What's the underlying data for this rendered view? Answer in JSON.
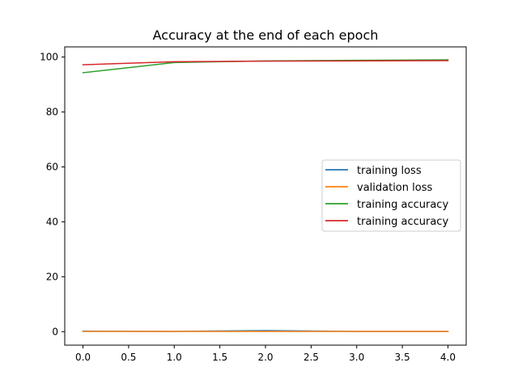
{
  "chart_data": {
    "type": "line",
    "title": "Accuracy at the end of each epoch",
    "xlabel": "",
    "ylabel": "",
    "x": [
      0,
      1,
      2,
      3,
      4
    ],
    "xlim": [
      -0.2,
      4.2
    ],
    "ylim": [
      -4.9,
      103.7
    ],
    "xticks": [
      0.0,
      0.5,
      1.0,
      1.5,
      2.0,
      2.5,
      3.0,
      3.5,
      4.0
    ],
    "xtick_labels": [
      "0.0",
      "0.5",
      "1.0",
      "1.5",
      "2.0",
      "2.5",
      "3.0",
      "3.5",
      "4.0"
    ],
    "yticks": [
      0,
      20,
      40,
      60,
      80,
      100
    ],
    "ytick_labels": [
      "0",
      "20",
      "40",
      "60",
      "80",
      "100"
    ],
    "grid": false,
    "legend_position": "center-right",
    "series": [
      {
        "name": "training loss",
        "color": "#1f77b4",
        "values": [
          0.2,
          0.1,
          0.4,
          0.1,
          0.1
        ]
      },
      {
        "name": "validation loss",
        "color": "#ff7f0e",
        "values": [
          0.1,
          0.1,
          0.1,
          0.1,
          0.1
        ]
      },
      {
        "name": "training accuracy",
        "color": "#2ca02c",
        "values": [
          94.3,
          98.0,
          98.6,
          98.8,
          99.0
        ]
      },
      {
        "name": "training accuracy",
        "color": "#d62728",
        "values": [
          97.2,
          98.3,
          98.5,
          98.6,
          98.7
        ]
      }
    ]
  }
}
